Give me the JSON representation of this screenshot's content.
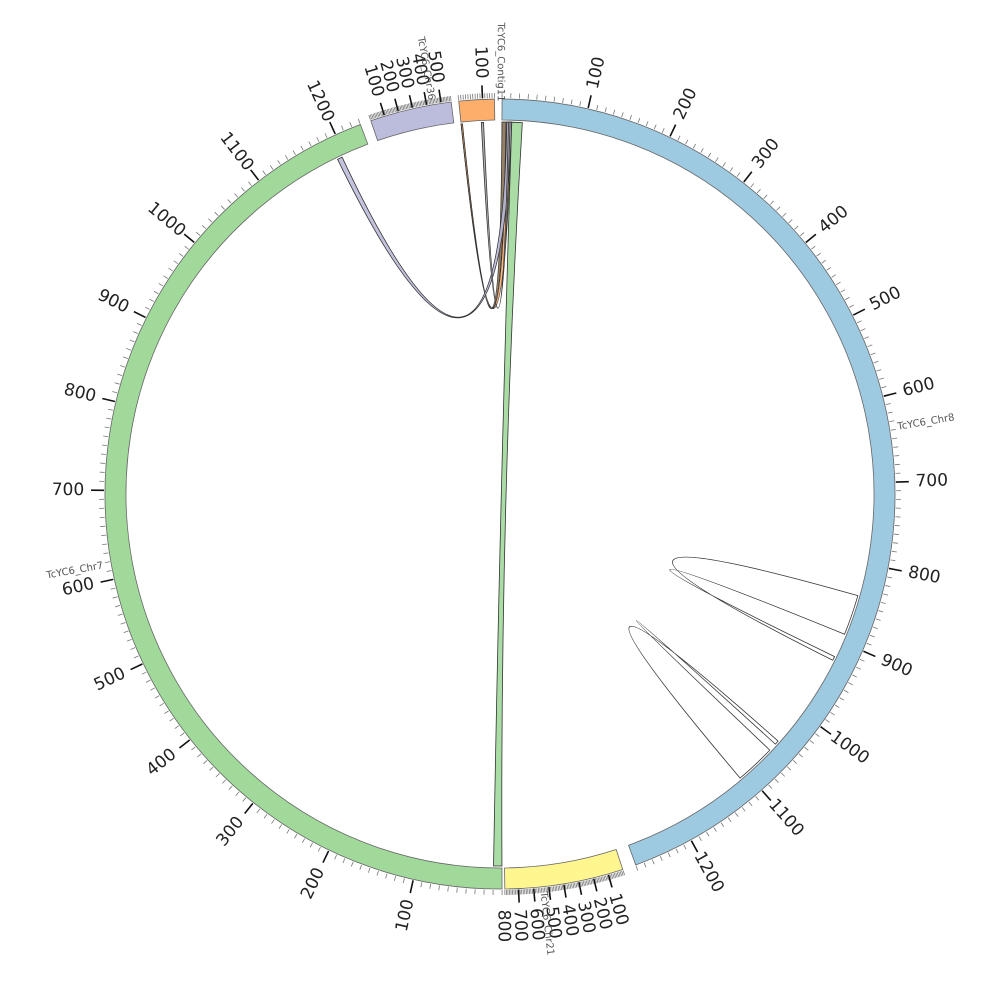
{
  "chart_data": {
    "type": "chord",
    "unit_step": 100,
    "chromosomes": [
      {
        "name": "TcYC6_Chr8",
        "length": 1270,
        "start_deg": 0.3,
        "end_deg": 159.9,
        "color": "#9ecae1",
        "labels": [
          "100",
          "200",
          "300",
          "400",
          "500",
          "600",
          "700",
          "800",
          "900",
          "1000",
          "1100",
          "1200"
        ]
      },
      {
        "name": "TcYC6_Chr21",
        "length": 790,
        "start_deg": 161.9,
        "end_deg": 179.3,
        "color": "#fff68f",
        "labels": [
          "100",
          "200",
          "300",
          "400",
          "500",
          "600",
          "700",
          "800"
        ]
      },
      {
        "name": "TcYC6_Chr7",
        "length": 1230,
        "start_deg": 179.7,
        "end_deg": 339.3,
        "color": "#a1d99b",
        "labels": [
          "100",
          "200",
          "300",
          "400",
          "500",
          "600",
          "700",
          "800",
          "900",
          "1000",
          "1100",
          "1200"
        ]
      },
      {
        "name": "TcYC6_Chr36",
        "length": 570,
        "start_deg": 340.9,
        "end_deg": 352.9,
        "color": "#bcbddc",
        "labels": [
          "100",
          "200",
          "300",
          "400",
          "500"
        ]
      },
      {
        "name": "TcYC6_Contig11",
        "length": 150,
        "start_deg": 354.0,
        "end_deg": 359.2,
        "color": "#fdae6b",
        "labels": [
          "100"
        ]
      }
    ],
    "links": [
      {
        "from": "TcYC6_Chr8",
        "from_start": 0,
        "from_end": 5,
        "to": "TcYC6_Contig11",
        "to_start": 0,
        "to_end": 5,
        "color": "#8b7355"
      },
      {
        "from": "TcYC6_Chr8",
        "from_start": 6,
        "from_end": 12,
        "to": "TcYC6_Contig11",
        "to_start": 0,
        "to_end": 6,
        "color": "#fdae6b"
      },
      {
        "from": "TcYC6_Chr8",
        "from_start": 6,
        "from_end": 12,
        "to": "TcYC6_Chr7",
        "to_start": 1190,
        "to_end": 1196,
        "color": "#bcbddc"
      },
      {
        "from": "TcYC6_Contig11",
        "from_start": 90,
        "from_end": 100,
        "to": "TcYC6_Chr8",
        "to_start": 8,
        "to_end": 10,
        "color": "#aaaaaa"
      },
      {
        "from": "TcYC6_Chr8",
        "from_start": 12,
        "from_end": 25,
        "to": "TcYC6_Chr7",
        "to_start": 0,
        "to_end": 10,
        "color": "#a1d99b"
      },
      {
        "from": "TcYC6_Chr8",
        "from_start": 840,
        "from_end": 890,
        "to": "TcYC6_Chr8",
        "to_start": 920,
        "to_end": 925,
        "color": "#ffffff"
      },
      {
        "from": "TcYC6_Chr8",
        "from_start": 1060,
        "from_end": 1110,
        "to": "TcYC6_Chr8",
        "to_start": 1045,
        "to_end": 1050,
        "color": "#ffffff"
      }
    ]
  }
}
